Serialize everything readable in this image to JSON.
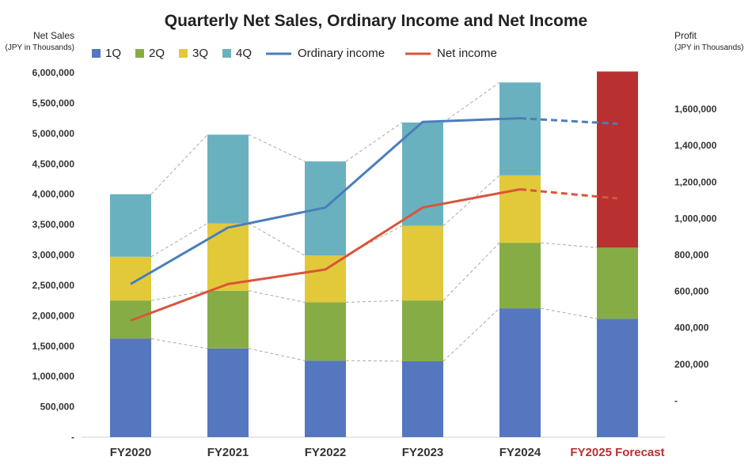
{
  "chart_data": {
    "type": "bar",
    "title": "Quarterly Net Sales, Ordinary Income and Net Income",
    "left_axis": {
      "label": "Net Sales",
      "sublabel": "(JPY in Thousands)",
      "ylim": [
        0,
        6000000
      ],
      "ticks": [
        "-",
        "500,000",
        "1,000,000",
        "1,500,000",
        "2,000,000",
        "2,500,000",
        "3,000,000",
        "3,500,000",
        "4,000,000",
        "4,500,000",
        "5,000,000",
        "5,500,000",
        "6,000,000"
      ]
    },
    "right_axis": {
      "label": "Profit",
      "sublabel": "(JPY in Thousands)",
      "ylim": [
        -200000,
        1800000
      ],
      "ticks": [
        "-",
        "200,000",
        "400,000",
        "600,000",
        "800,000",
        "1,000,000",
        "1,200,000",
        "1,400,000",
        "1,600,000"
      ]
    },
    "categories": [
      "FY2020",
      "FY2021",
      "FY2022",
      "FY2023",
      "FY2024",
      "FY2025 Forecast"
    ],
    "series": [
      {
        "name": "1Q",
        "color": "#5577c0",
        "values": [
          1620000,
          1460000,
          1260000,
          1250000,
          2120000,
          1950000
        ]
      },
      {
        "name": "2Q",
        "color": "#86ad45",
        "values": [
          630000,
          950000,
          960000,
          1000000,
          1080000,
          1170000
        ]
      },
      {
        "name": "3Q",
        "color": "#e2c93a",
        "values": [
          720000,
          1110000,
          770000,
          1230000,
          1110000,
          null
        ]
      },
      {
        "name": "4Q",
        "color": "#6ab1bf",
        "values": [
          1030000,
          1460000,
          1550000,
          1700000,
          1530000,
          null
        ]
      }
    ],
    "forecast_remainder": {
      "color": "#b83030",
      "value": 2900000
    },
    "lines": [
      {
        "name": "Ordinary income",
        "color": "#4a7ebb",
        "axis": "right",
        "values": [
          640000,
          950000,
          1060000,
          1530000,
          1550000,
          1520000
        ],
        "dashed_from": 4
      },
      {
        "name": "Net income",
        "color": "#d9553b",
        "axis": "right",
        "values": [
          440000,
          640000,
          720000,
          1060000,
          1160000,
          1110000
        ],
        "dashed_from": 4
      }
    ],
    "category_colors": {
      "default": "#333333",
      "forecast": "#b83030"
    },
    "grid": false,
    "legend_position": "top"
  }
}
